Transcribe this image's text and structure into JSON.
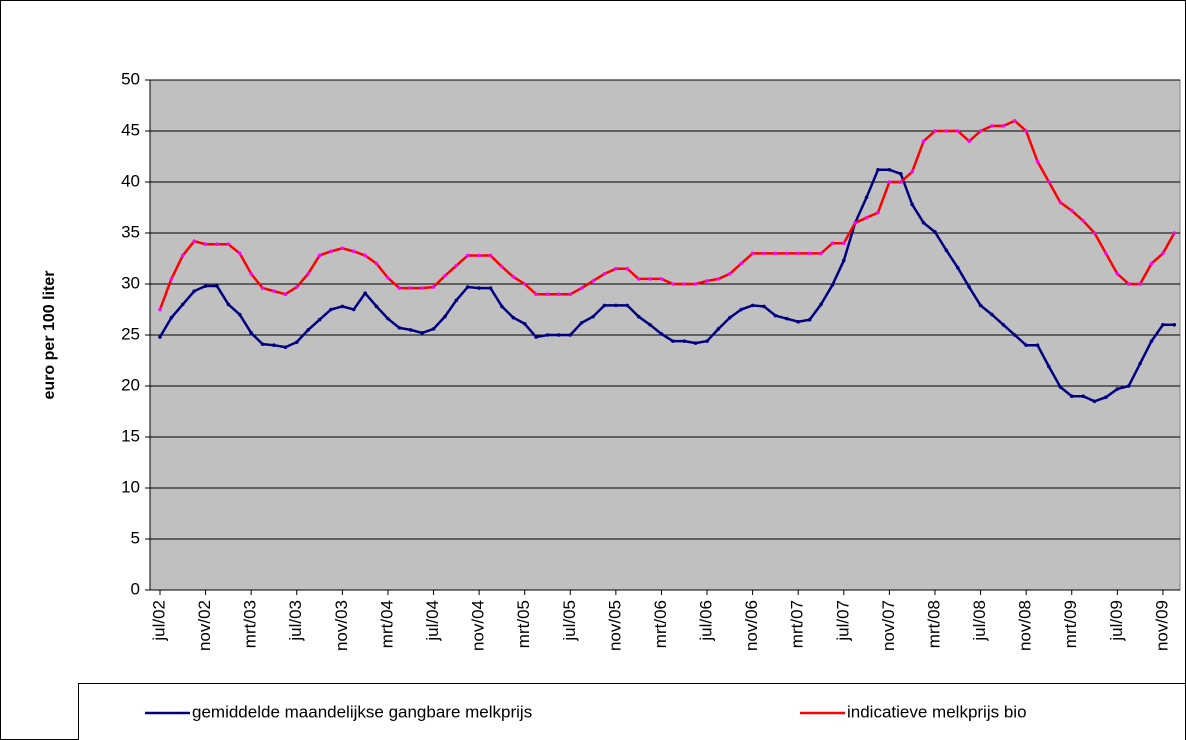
{
  "chart_data": {
    "type": "line",
    "y_label": "euro per 100 liter",
    "categories": [
      "jul/02",
      null,
      null,
      null,
      "nov/02",
      null,
      null,
      null,
      "mrt/03",
      null,
      null,
      null,
      "jul/03",
      null,
      null,
      null,
      "nov/03",
      null,
      null,
      null,
      "mrt/04",
      null,
      null,
      null,
      "jul/04",
      null,
      null,
      null,
      "nov/04",
      null,
      null,
      null,
      "mrt/05",
      null,
      null,
      null,
      "jul/05",
      null,
      null,
      null,
      "nov/05",
      null,
      null,
      null,
      "mrt/06",
      null,
      null,
      null,
      "jul/06",
      null,
      null,
      null,
      "nov/06",
      null,
      null,
      null,
      "mrt/07",
      null,
      null,
      null,
      "jul/07",
      null,
      null,
      null,
      "nov/07",
      null,
      null,
      null,
      "mrt/08",
      null,
      null,
      null,
      "jul/08",
      null,
      null,
      null,
      "nov/08",
      null,
      null,
      null,
      "mrt/09",
      null,
      null,
      null,
      "jul/09",
      null,
      null,
      null,
      "nov/09",
      null
    ],
    "series": [
      {
        "name": "gemiddelde maandelijkse gangbare melkprijs",
        "color": "#000080",
        "values": [
          24.8,
          26.7,
          28,
          29.3,
          29.8,
          29.8,
          28,
          27,
          25.2,
          24.1,
          24,
          23.8,
          24.3,
          25.5,
          26.5,
          27.5,
          27.8,
          27.5,
          29.1,
          27.8,
          26.6,
          25.7,
          25.5,
          25.2,
          25.6,
          26.8,
          28.4,
          29.7,
          29.6,
          29.6,
          27.8,
          26.7,
          26.1,
          24.8,
          25,
          25,
          25,
          26.2,
          26.8,
          27.9,
          27.9,
          27.9,
          26.8,
          26,
          25.1,
          24.4,
          24.4,
          24.2,
          24.4,
          25.6,
          26.7,
          27.5,
          27.9,
          27.8,
          26.9,
          26.6,
          26.3,
          26.5,
          28,
          29.9,
          32.3,
          36,
          38.5,
          41.2,
          41.2,
          40.8,
          37.8,
          36,
          35.1,
          33.3,
          31.6,
          29.7,
          27.9,
          27,
          26,
          25,
          24,
          24,
          21.9,
          19.9,
          19,
          19,
          18.5,
          18.9,
          19.7,
          20,
          22.2,
          24.4,
          26,
          26
        ]
      },
      {
        "name": "indicatieve melkprijs bio",
        "color": "#ff0000",
        "values": [
          27.5,
          30.5,
          32.8,
          34.2,
          33.9,
          33.9,
          33.9,
          33,
          31,
          29.6,
          29.3,
          29,
          29.7,
          31,
          32.8,
          33.2,
          33.5,
          33.2,
          32.8,
          32,
          30.6,
          29.6,
          29.6,
          29.6,
          29.7,
          30.8,
          31.8,
          32.8,
          32.8,
          32.8,
          31.7,
          30.7,
          30,
          29,
          29,
          29,
          29,
          29.6,
          30.3,
          31,
          31.5,
          31.5,
          30.5,
          30.5,
          30.5,
          30,
          30,
          30,
          30.3,
          30.5,
          31,
          32,
          33,
          33,
          33,
          33,
          33,
          33,
          33,
          34,
          34,
          36,
          36.5,
          37,
          40,
          40,
          41,
          44,
          45,
          45,
          45,
          44,
          45,
          45.5,
          45.5,
          46,
          45,
          42,
          40,
          38,
          37.2,
          36.2,
          35,
          33,
          31,
          30,
          30,
          32,
          33,
          35
        ]
      }
    ],
    "ylim": [
      0,
      50
    ],
    "yticks": [
      0,
      5,
      10,
      15,
      20,
      25,
      30,
      35,
      40,
      45,
      50
    ],
    "grid": true
  }
}
